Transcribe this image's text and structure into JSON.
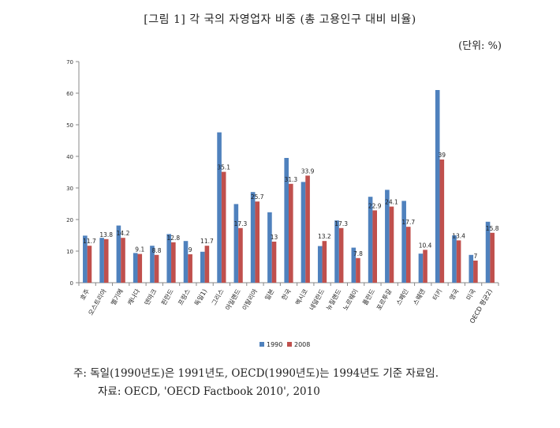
{
  "title": "[그림 1] 각 국의 자영업자 비중 (총 고용인구 대비 비율)",
  "unit": "(단위: %)",
  "notes": {
    "line1": "주: 독일(1990년도)은 1991년도, OECD(1990년도)는 1994년도 기준 자료임.",
    "line2": "자료: OECD, 'OECD Factbook 2010', 2010"
  },
  "colors": {
    "s1990": "#4F81BD",
    "s2008": "#C0504D"
  },
  "chart_data": {
    "type": "bar",
    "title": "[그림 1] 각 국의 자영업자 비중 (총 고용인구 대비 비율)",
    "ylabel": "",
    "xlabel": "",
    "ylim": [
      0,
      70
    ],
    "yticks": [
      0,
      10,
      20,
      30,
      40,
      50,
      60,
      70
    ],
    "grid": false,
    "legend": "bottom",
    "categories": [
      "호주",
      "오스트리아",
      "벨기에",
      "캐나다",
      "덴마크",
      "핀란드",
      "프랑스",
      "독일1)",
      "그리스",
      "아일랜드",
      "이탈리아",
      "일본",
      "한국",
      "멕시코",
      "네덜란드",
      "뉴질랜드",
      "노르웨이",
      "폴란드",
      "포르투갈",
      "스페인",
      "스웨덴",
      "터키",
      "영국",
      "미국",
      "OECD 평균2)"
    ],
    "series": [
      {
        "name": "1990",
        "values": [
          14.9,
          14.2,
          18.1,
          9.4,
          11.7,
          15.4,
          13.2,
          9.8,
          47.6,
          24.9,
          28.7,
          22.3,
          39.5,
          31.9,
          11.6,
          19.7,
          11.1,
          27.2,
          29.4,
          25.9,
          9.2,
          61.0,
          15.0,
          8.8,
          19.3
        ]
      },
      {
        "name": "2008",
        "values": [
          11.7,
          13.8,
          14.2,
          9.1,
          8.8,
          12.8,
          9.0,
          11.7,
          35.1,
          17.3,
          25.7,
          13.0,
          31.3,
          33.9,
          13.2,
          17.3,
          7.8,
          22.9,
          24.1,
          17.7,
          10.4,
          39.0,
          13.4,
          7.0,
          15.8
        ]
      }
    ],
    "value_labels_2008": [
      "11.7",
      "13.8",
      "14.2",
      "9.1",
      "8.8",
      "12.8",
      "9",
      "11.7",
      "35.1",
      "17.3",
      "25.7",
      "13",
      "31.3",
      "33.9",
      "13.2",
      "17.3",
      "7.8",
      "22.9",
      "24.1",
      "17.7",
      "10.4",
      "39",
      "13.4",
      "7",
      "15.8"
    ]
  }
}
